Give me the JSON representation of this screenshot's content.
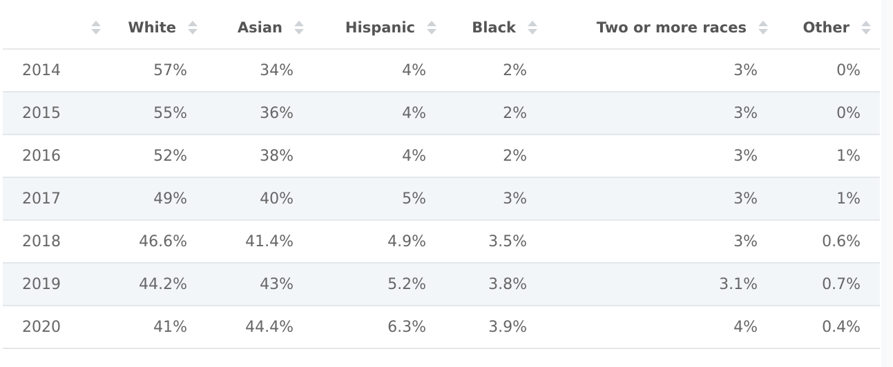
{
  "table": {
    "columns": [
      "",
      "White",
      "Asian",
      "Hispanic",
      "Black",
      "Two or more races",
      "Other"
    ],
    "rows": [
      [
        "2014",
        "57%",
        "34%",
        "4%",
        "2%",
        "3%",
        "0%"
      ],
      [
        "2015",
        "55%",
        "36%",
        "4%",
        "2%",
        "3%",
        "0%"
      ],
      [
        "2016",
        "52%",
        "38%",
        "4%",
        "2%",
        "3%",
        "1%"
      ],
      [
        "2017",
        "49%",
        "40%",
        "5%",
        "3%",
        "3%",
        "1%"
      ],
      [
        "2018",
        "46.6%",
        "41.4%",
        "4.9%",
        "3.5%",
        "3%",
        "0.6%"
      ],
      [
        "2019",
        "44.2%",
        "43%",
        "5.2%",
        "3.8%",
        "3.1%",
        "0.7%"
      ],
      [
        "2020",
        "41%",
        "44.4%",
        "6.3%",
        "3.9%",
        "4%",
        "0.4%"
      ]
    ]
  }
}
